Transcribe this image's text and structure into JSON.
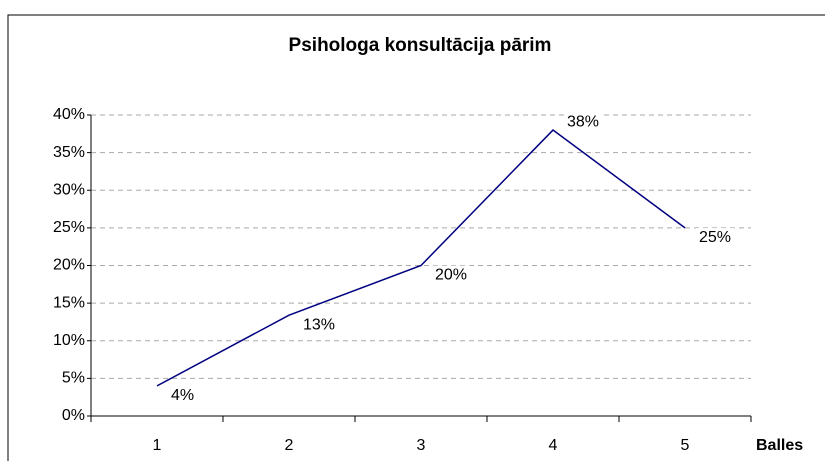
{
  "chart_data": {
    "type": "line",
    "title": "Psihologa konsultācija pārim",
    "x_label": "Balles",
    "categories": [
      "1",
      "2",
      "3",
      "4",
      "5"
    ],
    "series": [
      {
        "name": "Psihologa konsultācija pārim",
        "color": "#000080",
        "values": [
          4,
          13.4,
          20,
          38,
          25
        ],
        "value_labels": [
          "4%",
          "13%",
          "20%",
          "38%",
          "25%"
        ]
      }
    ],
    "ylim": [
      0,
      40
    ],
    "yticks": [
      {
        "value": 0,
        "label": "0%"
      },
      {
        "value": 5,
        "label": "5%"
      },
      {
        "value": 10,
        "label": "10%"
      },
      {
        "value": 15,
        "label": "15%"
      },
      {
        "value": 20,
        "label": "20%"
      },
      {
        "value": 25,
        "label": "25%"
      },
      {
        "value": 30,
        "label": "30%"
      },
      {
        "value": 35,
        "label": "35%"
      },
      {
        "value": 40,
        "label": "40%"
      }
    ],
    "grid": true
  }
}
